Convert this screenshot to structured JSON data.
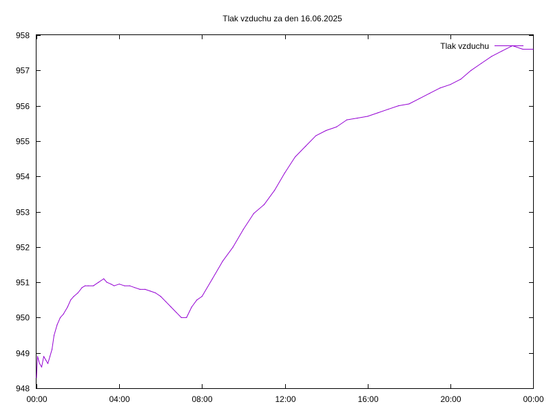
{
  "chart_data": {
    "type": "line",
    "title": "Tlak vzduchu za den 16.06.2025",
    "xlabel": "",
    "ylabel": "",
    "x_unit": "hours",
    "xlim": [
      0,
      24
    ],
    "ylim": [
      948,
      958
    ],
    "x_ticks": [
      {
        "value": 0,
        "label": "00:00"
      },
      {
        "value": 4,
        "label": "04:00"
      },
      {
        "value": 8,
        "label": "08:00"
      },
      {
        "value": 12,
        "label": "12:00"
      },
      {
        "value": 16,
        "label": "16:00"
      },
      {
        "value": 20,
        "label": "20:00"
      },
      {
        "value": 24,
        "label": "00:00"
      }
    ],
    "y_ticks": [
      948,
      949,
      950,
      951,
      952,
      953,
      954,
      955,
      956,
      957,
      958
    ],
    "grid": false,
    "legend": {
      "position": "top-right"
    },
    "series": [
      {
        "name": "Tlak vzduchu",
        "color": "#9400d3",
        "x": [
          0.0,
          0.05,
          0.15,
          0.25,
          0.35,
          0.45,
          0.55,
          0.65,
          0.75,
          0.85,
          1.0,
          1.15,
          1.3,
          1.5,
          1.65,
          1.8,
          2.0,
          2.2,
          2.35,
          2.5,
          2.75,
          3.0,
          3.25,
          3.4,
          3.6,
          3.75,
          4.0,
          4.25,
          4.5,
          4.75,
          5.0,
          5.25,
          5.5,
          5.75,
          6.0,
          6.25,
          6.5,
          6.75,
          7.0,
          7.25,
          7.5,
          7.75,
          8.0,
          8.5,
          9.0,
          9.5,
          10.0,
          10.5,
          11.0,
          11.5,
          12.0,
          12.5,
          13.0,
          13.5,
          14.0,
          14.5,
          15.0,
          15.5,
          16.0,
          16.5,
          17.0,
          17.5,
          18.0,
          18.5,
          19.0,
          19.5,
          20.0,
          20.5,
          21.0,
          21.5,
          22.0,
          22.5,
          23.0,
          23.5,
          24.0
        ],
        "values": [
          948.3,
          948.9,
          948.7,
          948.6,
          948.9,
          948.8,
          948.7,
          948.9,
          949.1,
          949.5,
          949.8,
          950.0,
          950.1,
          950.3,
          950.5,
          950.6,
          950.7,
          950.85,
          950.9,
          950.9,
          950.9,
          951.0,
          951.1,
          951.0,
          950.95,
          950.9,
          950.95,
          950.9,
          950.9,
          950.85,
          950.8,
          950.8,
          950.75,
          950.7,
          950.6,
          950.45,
          950.3,
          950.15,
          950.0,
          950.0,
          950.3,
          950.5,
          950.6,
          951.1,
          951.6,
          952.0,
          952.5,
          952.95,
          953.2,
          953.6,
          954.1,
          954.55,
          954.85,
          955.15,
          955.3,
          955.4,
          955.6,
          955.65,
          955.7,
          955.8,
          955.9,
          956.0,
          956.05,
          956.2,
          956.35,
          956.5,
          956.6,
          956.75,
          957.0,
          957.2,
          957.4,
          957.55,
          957.7,
          957.6,
          957.6
        ]
      }
    ]
  }
}
